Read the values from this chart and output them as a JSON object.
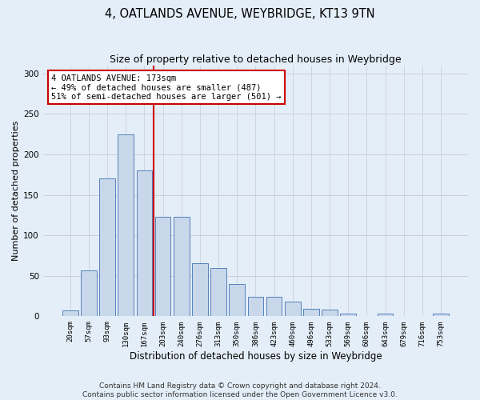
{
  "title": "4, OATLANDS AVENUE, WEYBRIDGE, KT13 9TN",
  "subtitle": "Size of property relative to detached houses in Weybridge",
  "xlabel": "Distribution of detached houses by size in Weybridge",
  "ylabel": "Number of detached properties",
  "categories": [
    "20sqm",
    "57sqm",
    "93sqm",
    "130sqm",
    "167sqm",
    "203sqm",
    "240sqm",
    "276sqm",
    "313sqm",
    "350sqm",
    "386sqm",
    "423sqm",
    "460sqm",
    "496sqm",
    "533sqm",
    "569sqm",
    "606sqm",
    "643sqm",
    "679sqm",
    "716sqm",
    "753sqm"
  ],
  "values": [
    7,
    57,
    170,
    225,
    180,
    123,
    123,
    66,
    60,
    40,
    24,
    24,
    18,
    9,
    8,
    3,
    0,
    3,
    0,
    0,
    3
  ],
  "bar_color": "#c8d8ea",
  "bar_edge_color": "#5580bb",
  "vline_pos": 4.5,
  "vline_color": "#cc0000",
  "annotation_line1": "4 OATLANDS AVENUE: 173sqm",
  "annotation_line2": "← 49% of detached houses are smaller (487)",
  "annotation_line3": "51% of semi-detached houses are larger (501) →",
  "annotation_box_color": "#ffffff",
  "annotation_box_edge_color": "#cc0000",
  "grid_color": "#c8c8d8",
  "background_color": "#e4eef8",
  "ylim_max": 310,
  "yticks": [
    0,
    50,
    100,
    150,
    200,
    250,
    300
  ],
  "footer_line1": "Contains HM Land Registry data © Crown copyright and database right 2024.",
  "footer_line2": "Contains public sector information licensed under the Open Government Licence v3.0."
}
